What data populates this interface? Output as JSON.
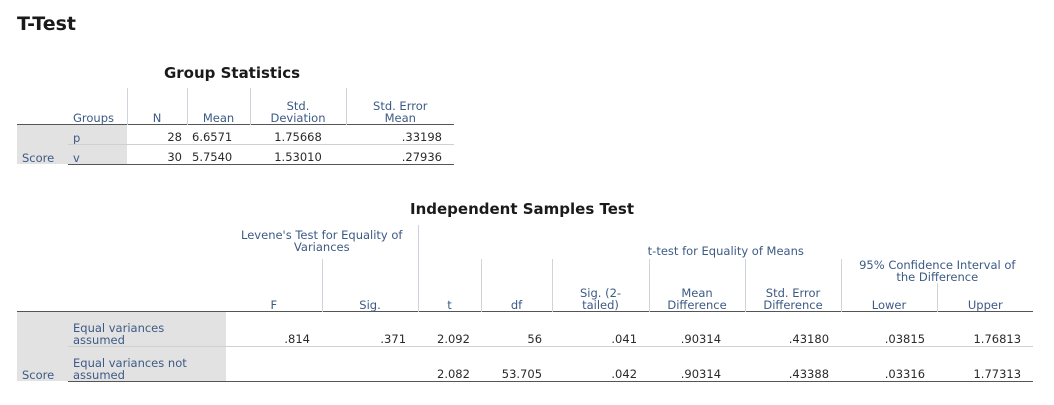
{
  "page_title": "T-Test",
  "group_statistics": {
    "title": "Group Statistics",
    "headers": {
      "groups": "Groups",
      "n": "N",
      "mean": "Mean",
      "std_dev_1": "Std.",
      "std_dev_2": "Deviation",
      "std_err_1": "Std. Error",
      "std_err_2": "Mean"
    },
    "variable": "Score",
    "rows": [
      {
        "group": "p",
        "n": "28",
        "mean": "6.6571",
        "std_dev": "1.75668",
        "std_err": ".33198"
      },
      {
        "group": "v",
        "n": "30",
        "mean": "5.7540",
        "std_dev": "1.53010",
        "std_err": ".27936"
      }
    ]
  },
  "independent_samples_test": {
    "title": "Independent Samples Test",
    "headers": {
      "levene_1": "Levene's Test for Equality of",
      "levene_2": "Variances",
      "ttest": "t-test for Equality of Means",
      "ci_1": "95% Confidence Interval of",
      "ci_2": "the Difference",
      "f": "F",
      "sig": "Sig.",
      "t": "t",
      "df": "df",
      "sig2_1": "Sig. (2-",
      "sig2_2": "tailed)",
      "mean_diff_1": "Mean",
      "mean_diff_2": "Difference",
      "se_diff_1": "Std. Error",
      "se_diff_2": "Difference",
      "lower": "Lower",
      "upper": "Upper"
    },
    "variable": "Score",
    "rows": [
      {
        "label_1": "Equal variances",
        "label_2": "assumed",
        "f": ".814",
        "sig": ".371",
        "t": "2.092",
        "df": "56",
        "sig2": ".041",
        "mean_diff": ".90314",
        "se_diff": ".43180",
        "lower": ".03815",
        "upper": "1.76813"
      },
      {
        "label_1": "Equal variances not",
        "label_2": "assumed",
        "f": "",
        "sig": "",
        "t": "2.082",
        "df": "53.705",
        "sig2": ".042",
        "mean_diff": ".90314",
        "se_diff": ".43388",
        "lower": ".03316",
        "upper": "1.77313"
      }
    ]
  },
  "colors": {
    "header_text": "#3c5a84",
    "label_bg": "#e2e2e2"
  }
}
